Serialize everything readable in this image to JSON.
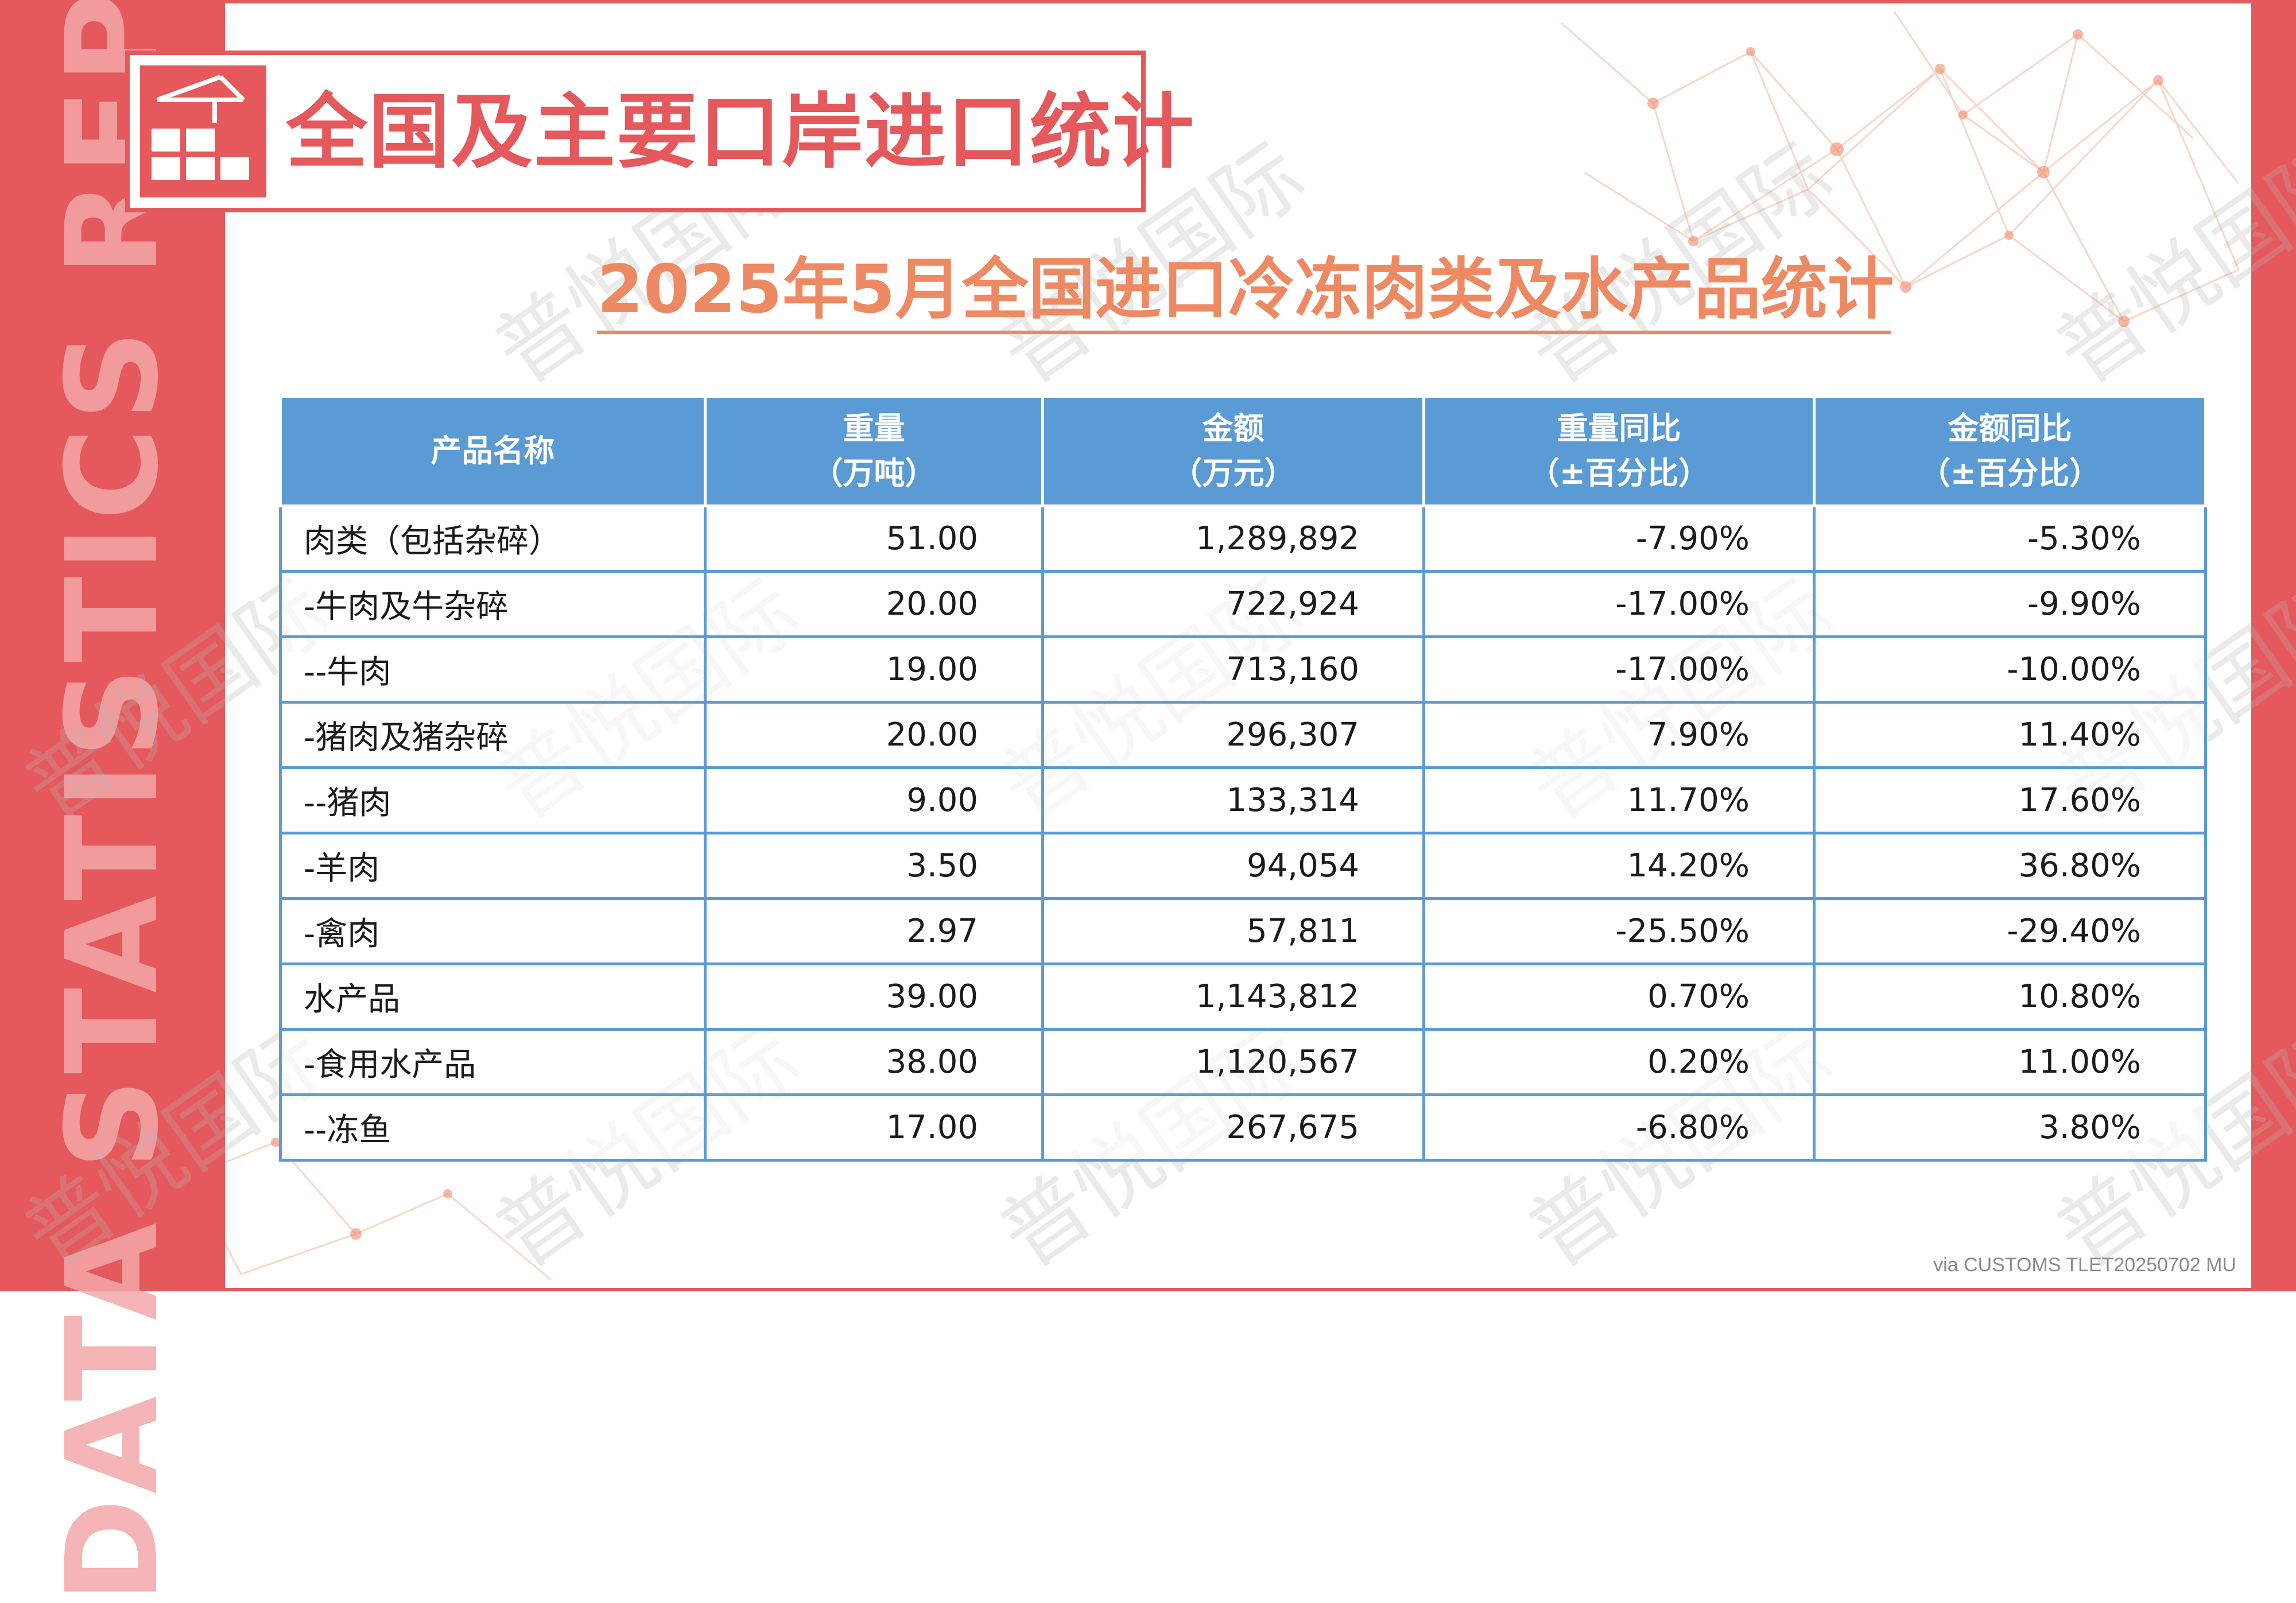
{
  "side_banner": "DATA STATISTICS REPORT",
  "header": {
    "title": "全国及主要口岸进口统计"
  },
  "subtitle": "2025年5月全国进口冷冻肉类及水产品统计",
  "watermark": "普悦国际",
  "table": {
    "columns": [
      {
        "line1": "产品名称",
        "line2": ""
      },
      {
        "line1": "重量",
        "line2": "（万吨）"
      },
      {
        "line1": "金额",
        "line2": "（万元）"
      },
      {
        "line1": "重量同比",
        "line2": "（±百分比）"
      },
      {
        "line1": "金额同比",
        "line2": "（±百分比）"
      }
    ],
    "rows": [
      [
        "肉类（包括杂碎）",
        "51.00",
        "1,289,892",
        "-7.90%",
        "-5.30%"
      ],
      [
        "-牛肉及牛杂碎",
        "20.00",
        "722,924",
        "-17.00%",
        "-9.90%"
      ],
      [
        "--牛肉",
        "19.00",
        "713,160",
        "-17.00%",
        "-10.00%"
      ],
      [
        "-猪肉及猪杂碎",
        "20.00",
        "296,307",
        "7.90%",
        "11.40%"
      ],
      [
        "--猪肉",
        "9.00",
        "133,314",
        "11.70%",
        "17.60%"
      ],
      [
        "-羊肉",
        "3.50",
        "94,054",
        "14.20%",
        "36.80%"
      ],
      [
        "-禽肉",
        "2.97",
        "57,811",
        "-25.50%",
        "-29.40%"
      ],
      [
        "水产品",
        "39.00",
        "1,143,812",
        "0.70%",
        "10.80%"
      ],
      [
        "-食用水产品",
        "38.00",
        "1,120,567",
        "0.20%",
        "11.00%"
      ],
      [
        "--冻鱼",
        "17.00",
        "267,675",
        "-6.80%",
        "3.80%"
      ]
    ]
  },
  "footer": "via CUSTOMS TLET20250702 MU",
  "colors": {
    "accent": "#e5585c",
    "subtitle": "#ee8a63",
    "table_header": "#5b9bd5"
  },
  "icons": {
    "header": "crane-containers-icon"
  }
}
